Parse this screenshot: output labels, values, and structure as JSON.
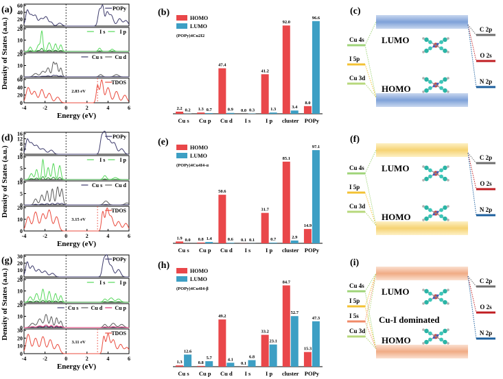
{
  "colors": {
    "homo": "#e9474a",
    "lumo": "#3d9fc4",
    "popy": "#3c3a6b",
    "i": "#55d85a",
    "cu": "#5a5a5a",
    "cup": "#d8306f",
    "tdos": "#ea4a3d",
    "cu4s": "#9fd479",
    "i5p": "#f3c233",
    "cu3d": "#b7d87c",
    "i5s": "#f08a68",
    "c2p": "#6e6e6e",
    "o2s": "#c01d22",
    "n2p": "#1c5f9e"
  },
  "dos": [
    {
      "label": "(a)",
      "popy": "POPy",
      "i": "I s",
      "ip": "I p",
      "cus": "Cu s",
      "cud": "Cu d",
      "cup": "",
      "tdos": "TDOS",
      "gap": "2.83 eV",
      "popy_ticks": [
        "0",
        "20",
        "40",
        "60"
      ],
      "i_ticks": [
        "0",
        "10",
        "20"
      ],
      "cu_ticks": [
        "0",
        "10",
        "20"
      ],
      "t_ticks": [
        "0",
        "20",
        "40",
        "60"
      ]
    },
    {
      "label": "(d)",
      "popy": "POPy",
      "i": "I s",
      "ip": "I p",
      "cus": "Cu s",
      "cud": "Cu d",
      "cup": "",
      "tdos": "TDOS",
      "gap": "3.15 eV",
      "popy_ticks": [
        "0",
        "4",
        "8",
        "12",
        "16"
      ],
      "i_ticks": [
        "0",
        "5",
        "10"
      ],
      "cu_ticks": [
        "0",
        "5",
        "10"
      ],
      "t_ticks": [
        "0",
        "10",
        "20"
      ]
    },
    {
      "label": "(g)",
      "popy": "POPy",
      "i": "I s",
      "ip": "I p",
      "cus": "Cu s",
      "cud": "Cu d",
      "cup": "Cu p",
      "tdos": "TDOS",
      "gap": "3.11 eV",
      "popy_ticks": [
        "0",
        "10",
        "20",
        "30"
      ],
      "i_ticks": [
        "0",
        "10",
        "20"
      ],
      "cu_ticks": [
        "0",
        "10",
        "20"
      ],
      "t_ticks": [
        "0",
        "10",
        "20",
        "30"
      ]
    }
  ],
  "dos_axis": {
    "ylabel": "Density of States (a.u.)",
    "xlabel": "Energy (eV)",
    "xticks": [
      "-4",
      "-2",
      "0",
      "2",
      "4",
      "6"
    ]
  },
  "chart_data": [
    {
      "type": "bar",
      "label": "(b)",
      "title": "(POPy)4Cu2I2",
      "categories": [
        "Cu s",
        "Cu p",
        "Cu d",
        "I s",
        "I p",
        "cluster",
        "POPy"
      ],
      "series": [
        {
          "name": "HOMO",
          "values": [
            2.2,
            1.3,
            47.4,
            0.0,
            41.2,
            92.0,
            8.0
          ]
        },
        {
          "name": "LUMO",
          "values": [
            0.2,
            0.7,
            0.9,
            0.3,
            1.3,
            3.4,
            96.6
          ]
        }
      ],
      "labels": {
        "homo": [
          "2.2",
          "1.3",
          "47.4",
          "0.0",
          "41.2",
          "92.0",
          "8.0"
        ],
        "lumo": [
          "0.2",
          "0.7",
          "0.9",
          "0.3",
          "1.3",
          "3.4",
          "96.6"
        ]
      },
      "ylim": [
        0,
        100
      ]
    },
    {
      "type": "bar",
      "label": "(e)",
      "title": "(POPy)4Cu4I4-α",
      "categories": [
        "Cu s",
        "Cu p",
        "Cu d",
        "I s",
        "I p",
        "cluster",
        "POPy"
      ],
      "series": [
        {
          "name": "HOMO",
          "values": [
            1.9,
            0.8,
            50.6,
            0.1,
            31.7,
            85.1,
            14.9
          ]
        },
        {
          "name": "LUMO",
          "values": [
            0.0,
            1.4,
            0.6,
            0.1,
            0.7,
            2.9,
            97.1
          ]
        }
      ],
      "labels": {
        "homo": [
          "1.9",
          "0.8",
          "50.6",
          "0.1",
          "31.7",
          "85.1",
          "14.9"
        ],
        "lumo": [
          "0.0",
          "1.4",
          "0.6",
          "0.1",
          "0.7",
          "2.9",
          "97.1"
        ]
      },
      "ylim": [
        0,
        100
      ]
    },
    {
      "type": "bar",
      "label": "(h)",
      "title": "(POPy)4Cu4I4-β",
      "categories": [
        "Cu s",
        "Cu p",
        "Cu d",
        "I s",
        "I p",
        "cluster",
        "POPy"
      ],
      "series": [
        {
          "name": "HOMO",
          "values": [
            1.3,
            0.8,
            49.2,
            0.1,
            33.2,
            84.7,
            15.3
          ]
        },
        {
          "name": "LUMO",
          "values": [
            12.6,
            5.7,
            4.1,
            6.8,
            23.1,
            52.7,
            47.3
          ]
        }
      ],
      "labels": {
        "homo": [
          "1.3",
          "0.8",
          "49.2",
          "0.1",
          "33.2",
          "84.7",
          "15.3"
        ],
        "lumo": [
          "12.6",
          "5.7",
          "4.1",
          "6.8",
          "23.1",
          "52.7",
          "47.3"
        ]
      },
      "ylim": [
        0,
        100
      ]
    }
  ],
  "diagrams": [
    {
      "label": "(c)",
      "lumo": "LUMO",
      "homo": "HOMO",
      "left": [
        "Cu 4s",
        "I 5p",
        "Cu 3d"
      ],
      "right": [
        "C 2p",
        "O 2s",
        "N 2p"
      ],
      "note": ""
    },
    {
      "label": "(f)",
      "lumo": "LUMO",
      "homo": "HOMO",
      "left": [
        "Cu 4s",
        "I 5p",
        "Cu 3d"
      ],
      "right": [
        "C 2p",
        "O 2s",
        "N 2p"
      ],
      "note": ""
    },
    {
      "label": "(i)",
      "lumo": "LUMO",
      "homo": "HOMO",
      "left": [
        "Cu 4s",
        "I 5p",
        "I 5s",
        "Cu 3d"
      ],
      "right": [
        "C 2p",
        "O 2s",
        "N 2p"
      ],
      "note": "Cu-I dominated"
    }
  ]
}
